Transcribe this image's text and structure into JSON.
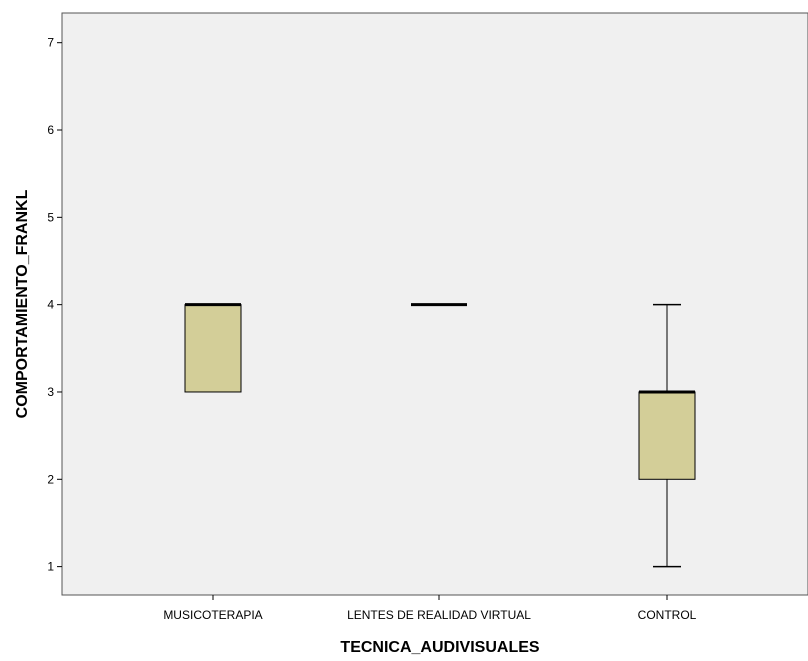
{
  "chart_data": {
    "type": "boxplot",
    "xlabel": "TECNICA_AUDIVISUALES",
    "ylabel": "COMPORTAMIENTO_FRANKL",
    "categories": [
      "MUSICOTERAPIA",
      "LENTES DE REALIDAD VIRTUAL",
      "CONTROL"
    ],
    "yticks": [
      1,
      2,
      3,
      4,
      5,
      6,
      7
    ],
    "ylim": [
      0.675,
      7.34
    ],
    "boxes": [
      {
        "category": "MUSICOTERAPIA",
        "min": 3,
        "q1": 3,
        "median": 4,
        "q3": 4,
        "max": 4
      },
      {
        "category": "LENTES DE REALIDAD VIRTUAL",
        "min": 4,
        "q1": 4,
        "median": 4,
        "q3": 4,
        "max": 4
      },
      {
        "category": "CONTROL",
        "min": 1,
        "q1": 2,
        "median": 3,
        "q3": 3,
        "max": 4
      }
    ],
    "grid": false,
    "legend": "none",
    "colors": {
      "box_fill": "#d3ce98",
      "plot_bg": "#f0f0f0",
      "line": "#000000"
    }
  }
}
